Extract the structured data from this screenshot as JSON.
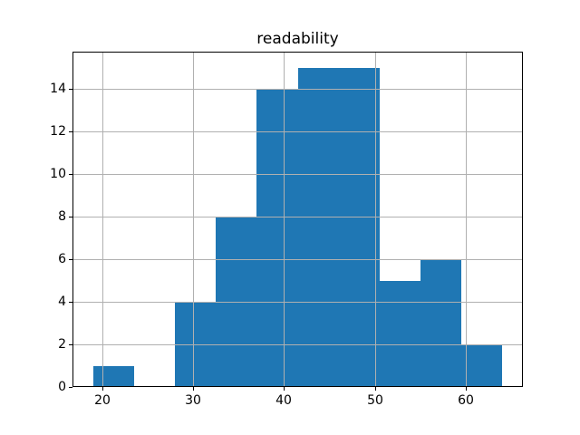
{
  "chart_data": {
    "type": "bar",
    "subtype": "histogram",
    "title": "readability",
    "xlabel": "",
    "ylabel": "",
    "bin_edges": [
      19,
      23.5,
      28,
      32.5,
      37,
      41.5,
      46,
      50.5,
      55,
      59.5,
      64
    ],
    "counts": [
      1,
      0,
      4,
      8,
      14,
      15,
      15,
      5,
      6,
      2
    ],
    "xlim": [
      16.75,
      66.25
    ],
    "ylim": [
      0,
      15.75
    ],
    "xticks": [
      20,
      30,
      40,
      50,
      60
    ],
    "yticks": [
      0,
      2,
      4,
      6,
      8,
      10,
      12,
      14
    ],
    "grid": true,
    "grid_over_bars": true,
    "legend": null,
    "bar_color": "#1f77b4",
    "grid_color": "#b0b0b0",
    "axis_color": "#000000",
    "background_color": "#ffffff"
  }
}
